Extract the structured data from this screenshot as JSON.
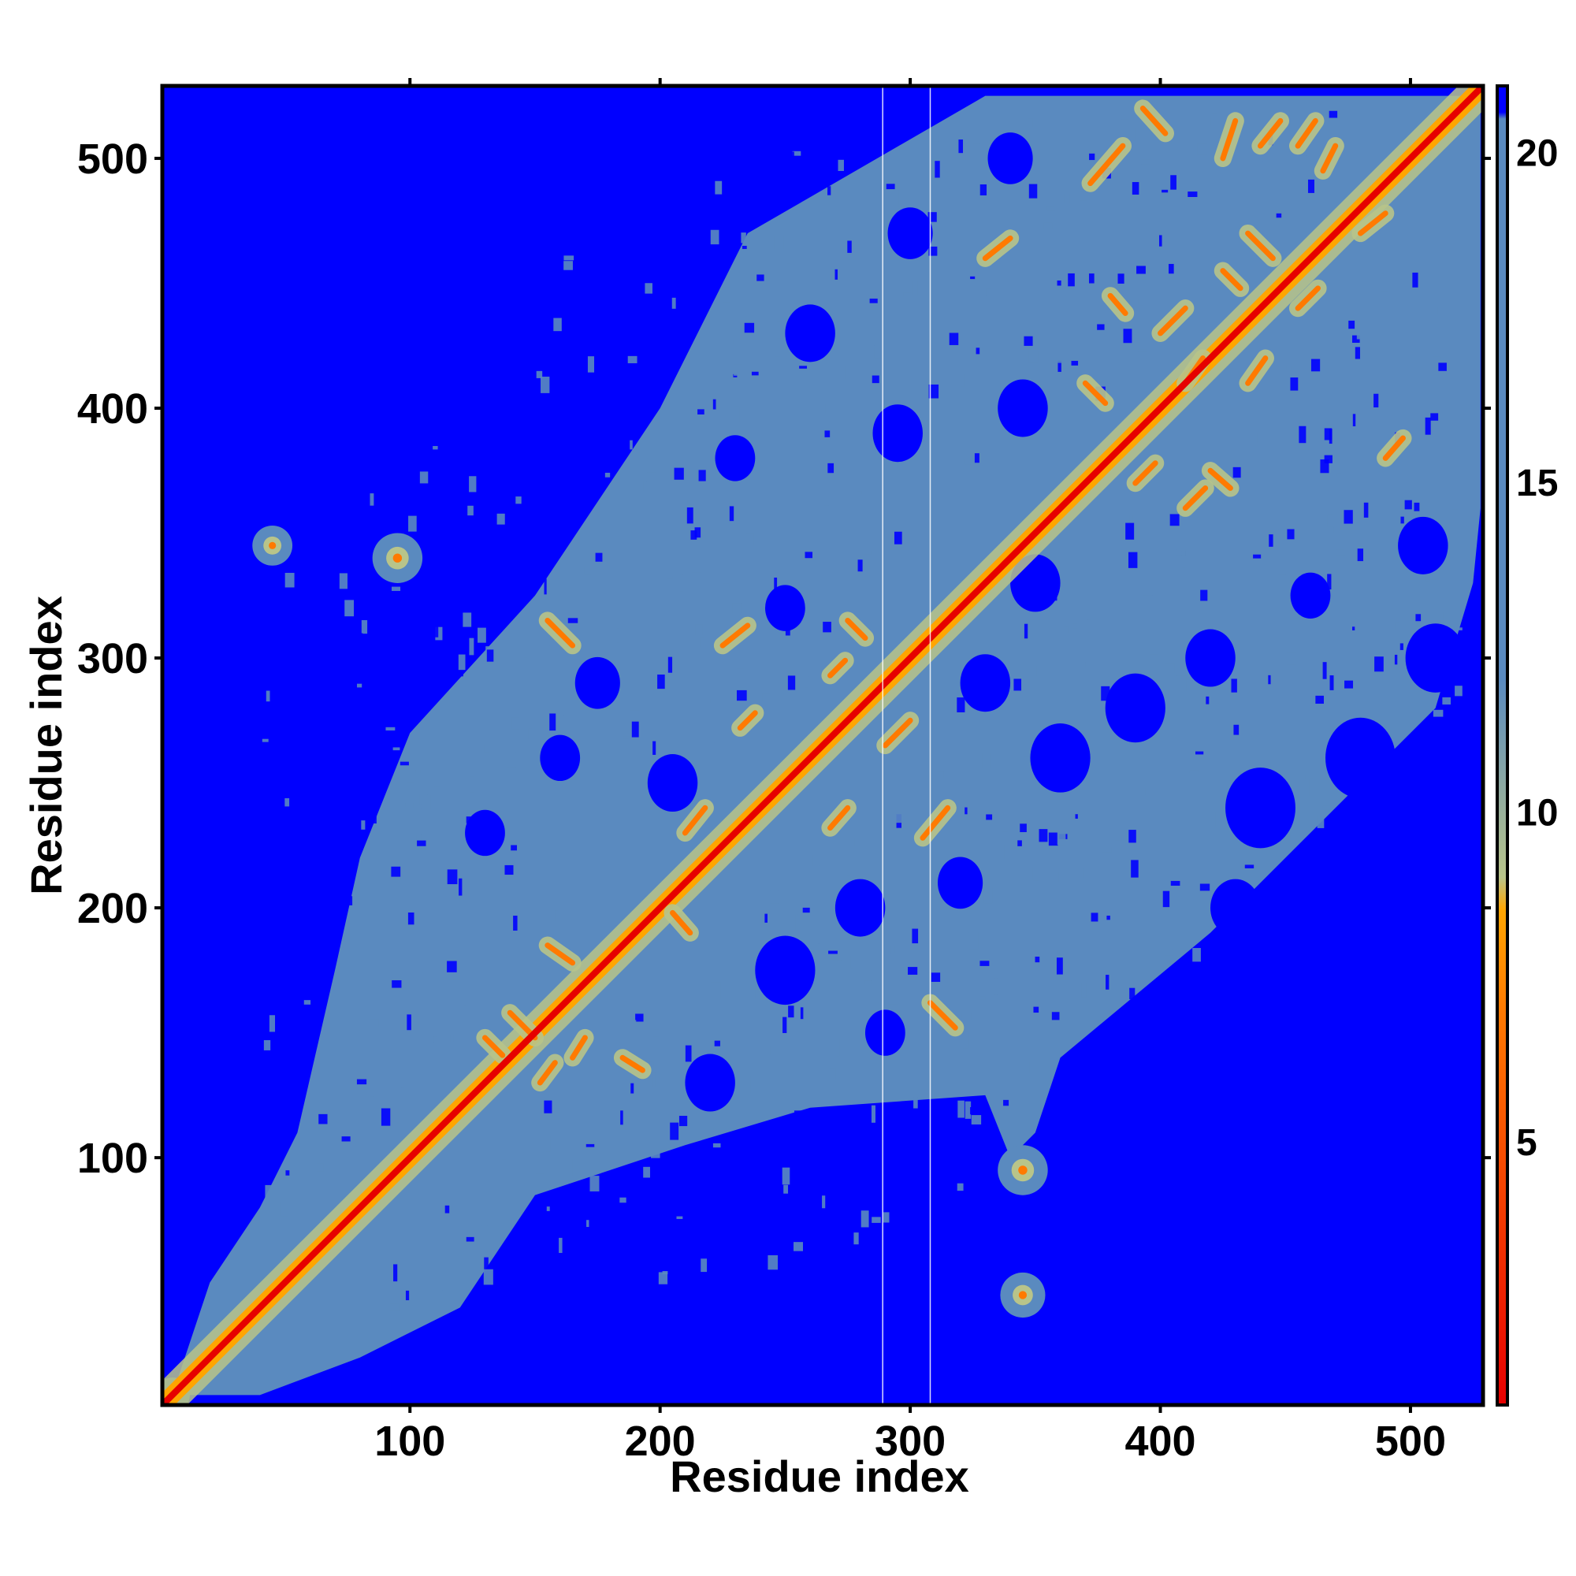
{
  "chart_data": {
    "type": "heatmap",
    "subtype": "residue distance map",
    "xlabel": "Residue index",
    "ylabel": "Residue index",
    "xlim": [
      1,
      529
    ],
    "ylim": [
      1,
      529
    ],
    "x_ticks": [
      100,
      200,
      300,
      400,
      500
    ],
    "y_ticks": [
      100,
      200,
      300,
      400,
      500
    ],
    "x_tick_labels": [
      "100",
      "200",
      "300",
      "400",
      "500"
    ],
    "y_tick_labels": [
      "100",
      "200",
      "300",
      "400",
      "500"
    ],
    "colorbar": {
      "range": [
        1,
        21
      ],
      "ticks": [
        5,
        10,
        15,
        20
      ],
      "tick_labels": [
        "5",
        "10",
        "15",
        "20"
      ],
      "colors": {
        "close": "#e60000",
        "near": "#ff7a00",
        "mid": "#ffa500",
        "transition": "#b8c48a",
        "far": "#5a8abf",
        "background": "#0000ff"
      },
      "stops": [
        {
          "value": 1,
          "color": "#e60000"
        },
        {
          "value": 7,
          "color": "#ff7a00"
        },
        {
          "value": 8.5,
          "color": "#ffa500"
        },
        {
          "value": 9,
          "color": "#b8c48a"
        },
        {
          "value": 12,
          "color": "#5a8abf"
        },
        {
          "value": 20.5,
          "color": "#5a8abf"
        },
        {
          "value": 20.6,
          "color": "#0000ff"
        }
      ]
    },
    "diagonal": {
      "from": 1,
      "to": 529
    },
    "gap_columns": [
      289,
      308
    ],
    "contact_region_outline": [
      [
        5,
        5
      ],
      [
        40,
        5
      ],
      [
        80,
        20
      ],
      [
        120,
        40
      ],
      [
        150,
        85
      ],
      [
        210,
        105
      ],
      [
        260,
        120
      ],
      [
        330,
        125
      ],
      [
        340,
        100
      ],
      [
        350,
        110
      ],
      [
        360,
        140
      ],
      [
        420,
        190
      ],
      [
        470,
        240
      ],
      [
        510,
        280
      ],
      [
        525,
        330
      ],
      [
        528,
        360
      ],
      [
        528,
        525
      ],
      [
        330,
        525
      ],
      [
        235,
        470
      ],
      [
        200,
        400
      ],
      [
        150,
        325
      ],
      [
        100,
        270
      ],
      [
        90,
        245
      ],
      [
        80,
        220
      ],
      [
        70,
        175
      ],
      [
        55,
        110
      ],
      [
        40,
        80
      ],
      [
        20,
        50
      ],
      [
        5,
        5
      ]
    ],
    "blobs": [
      {
        "x": 45,
        "y": 345,
        "r": 8
      },
      {
        "x": 95,
        "y": 340,
        "r": 10
      },
      {
        "x": 345,
        "y": 95,
        "r": 10
      },
      {
        "x": 345,
        "y": 45,
        "r": 9
      },
      {
        "x": 5,
        "y": 5,
        "r": 7
      }
    ],
    "contact_streaks": [
      {
        "x1": 155,
        "y1": 315,
        "x2": 165,
        "y2": 305
      },
      {
        "x1": 225,
        "y1": 305,
        "x2": 235,
        "y2": 313
      },
      {
        "x1": 232,
        "y1": 272,
        "x2": 238,
        "y2": 278
      },
      {
        "x1": 268,
        "y1": 293,
        "x2": 274,
        "y2": 299
      },
      {
        "x1": 275,
        "y1": 315,
        "x2": 282,
        "y2": 308
      },
      {
        "x1": 290,
        "y1": 265,
        "x2": 300,
        "y2": 275
      },
      {
        "x1": 305,
        "y1": 228,
        "x2": 315,
        "y2": 240
      },
      {
        "x1": 268,
        "y1": 232,
        "x2": 275,
        "y2": 240
      },
      {
        "x1": 308,
        "y1": 162,
        "x2": 318,
        "y2": 152
      },
      {
        "x1": 130,
        "y1": 148,
        "x2": 137,
        "y2": 141
      },
      {
        "x1": 140,
        "y1": 158,
        "x2": 150,
        "y2": 148
      },
      {
        "x1": 152,
        "y1": 130,
        "x2": 158,
        "y2": 138
      },
      {
        "x1": 155,
        "y1": 185,
        "x2": 165,
        "y2": 178
      },
      {
        "x1": 185,
        "y1": 140,
        "x2": 193,
        "y2": 135
      },
      {
        "x1": 205,
        "y1": 198,
        "x2": 212,
        "y2": 190
      },
      {
        "x1": 210,
        "y1": 230,
        "x2": 218,
        "y2": 240
      },
      {
        "x1": 165,
        "y1": 140,
        "x2": 170,
        "y2": 148
      },
      {
        "x1": 370,
        "y1": 410,
        "x2": 378,
        "y2": 402
      },
      {
        "x1": 380,
        "y1": 445,
        "x2": 386,
        "y2": 438
      },
      {
        "x1": 372,
        "y1": 490,
        "x2": 385,
        "y2": 505
      },
      {
        "x1": 393,
        "y1": 520,
        "x2": 402,
        "y2": 510
      },
      {
        "x1": 425,
        "y1": 500,
        "x2": 430,
        "y2": 515
      },
      {
        "x1": 435,
        "y1": 470,
        "x2": 445,
        "y2": 460
      },
      {
        "x1": 440,
        "y1": 505,
        "x2": 448,
        "y2": 515
      },
      {
        "x1": 455,
        "y1": 505,
        "x2": 462,
        "y2": 515
      },
      {
        "x1": 465,
        "y1": 495,
        "x2": 470,
        "y2": 505
      },
      {
        "x1": 480,
        "y1": 470,
        "x2": 490,
        "y2": 478
      },
      {
        "x1": 490,
        "y1": 380,
        "x2": 497,
        "y2": 388
      },
      {
        "x1": 455,
        "y1": 440,
        "x2": 463,
        "y2": 448
      },
      {
        "x1": 435,
        "y1": 410,
        "x2": 442,
        "y2": 420
      },
      {
        "x1": 410,
        "y1": 410,
        "x2": 417,
        "y2": 420
      },
      {
        "x1": 400,
        "y1": 430,
        "x2": 410,
        "y2": 440
      },
      {
        "x1": 390,
        "y1": 370,
        "x2": 398,
        "y2": 378
      },
      {
        "x1": 410,
        "y1": 360,
        "x2": 418,
        "y2": 368
      },
      {
        "x1": 420,
        "y1": 375,
        "x2": 428,
        "y2": 368
      },
      {
        "x1": 425,
        "y1": 455,
        "x2": 432,
        "y2": 448
      },
      {
        "x1": 330,
        "y1": 460,
        "x2": 340,
        "y2": 468
      }
    ],
    "holes": [
      {
        "x": 160,
        "y": 260,
        "r": 8
      },
      {
        "x": 205,
        "y": 250,
        "r": 10
      },
      {
        "x": 175,
        "y": 290,
        "r": 9
      },
      {
        "x": 250,
        "y": 175,
        "r": 12
      },
      {
        "x": 280,
        "y": 200,
        "r": 10
      },
      {
        "x": 320,
        "y": 210,
        "r": 9
      },
      {
        "x": 250,
        "y": 320,
        "r": 8
      },
      {
        "x": 330,
        "y": 290,
        "r": 10
      },
      {
        "x": 350,
        "y": 330,
        "r": 10
      },
      {
        "x": 360,
        "y": 260,
        "r": 12
      },
      {
        "x": 390,
        "y": 280,
        "r": 12
      },
      {
        "x": 440,
        "y": 240,
        "r": 14
      },
      {
        "x": 480,
        "y": 260,
        "r": 14
      },
      {
        "x": 510,
        "y": 300,
        "r": 12
      },
      {
        "x": 505,
        "y": 345,
        "r": 10
      },
      {
        "x": 460,
        "y": 325,
        "r": 8
      },
      {
        "x": 420,
        "y": 300,
        "r": 10
      },
      {
        "x": 295,
        "y": 390,
        "r": 10
      },
      {
        "x": 260,
        "y": 430,
        "r": 10
      },
      {
        "x": 300,
        "y": 470,
        "r": 9
      },
      {
        "x": 340,
        "y": 500,
        "r": 9
      },
      {
        "x": 345,
        "y": 400,
        "r": 10
      },
      {
        "x": 230,
        "y": 380,
        "r": 8
      },
      {
        "x": 220,
        "y": 130,
        "r": 10
      },
      {
        "x": 130,
        "y": 230,
        "r": 8
      },
      {
        "x": 290,
        "y": 150,
        "r": 8
      },
      {
        "x": 430,
        "y": 200,
        "r": 10
      },
      {
        "x": 470,
        "y": 215,
        "r": 10
      }
    ]
  }
}
